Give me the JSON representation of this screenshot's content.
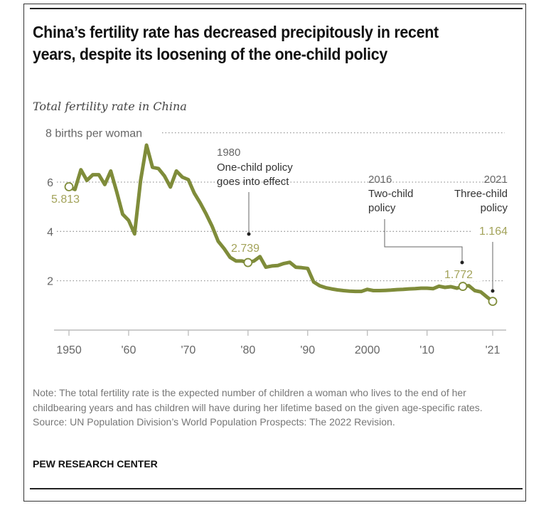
{
  "title": "China’s fertility rate has decreased precipitously in recent years, despite its loosening of the one-child policy",
  "subtitle": "Total fertility rate in China",
  "note": "Note: The total fertility rate is the expected number of children a woman who lives to the end of her childbearing years and has children will have during her lifetime based on the given age-specific rates.",
  "source": "Source: UN Population Division’s World Population Prospects: The 2022 Revision.",
  "brand": "PEW RESEARCH CENTER",
  "chart_data": {
    "type": "line",
    "title": "Total fertility rate in China",
    "ylabel": "8 births per woman",
    "ylim": [
      0,
      8
    ],
    "xlim": [
      1950,
      2021
    ],
    "grid": "horizontal dotted",
    "line_color": "#7f8c3a",
    "y_ticks": [
      {
        "value": 2,
        "label": "2"
      },
      {
        "value": 4,
        "label": "4"
      },
      {
        "value": 6,
        "label": "6"
      },
      {
        "value": 8,
        "label": "8 births per woman"
      }
    ],
    "x_ticks": [
      {
        "value": 1950,
        "label": "1950"
      },
      {
        "value": 1960,
        "label": "'60"
      },
      {
        "value": 1970,
        "label": "'70"
      },
      {
        "value": 1980,
        "label": "'80"
      },
      {
        "value": 1990,
        "label": "'90"
      },
      {
        "value": 2000,
        "label": "2000"
      },
      {
        "value": 2010,
        "label": "'10"
      },
      {
        "value": 2021,
        "label": "'21"
      }
    ],
    "x": [
      1950,
      1951,
      1952,
      1953,
      1954,
      1955,
      1956,
      1957,
      1958,
      1959,
      1960,
      1961,
      1962,
      1963,
      1964,
      1965,
      1966,
      1967,
      1968,
      1969,
      1970,
      1971,
      1972,
      1973,
      1974,
      1975,
      1976,
      1977,
      1978,
      1979,
      1980,
      1981,
      1982,
      1983,
      1984,
      1985,
      1986,
      1987,
      1988,
      1989,
      1990,
      1991,
      1992,
      1993,
      1994,
      1995,
      1996,
      1997,
      1998,
      1999,
      2000,
      2001,
      2002,
      2003,
      2004,
      2005,
      2006,
      2007,
      2008,
      2009,
      2010,
      2011,
      2012,
      2013,
      2014,
      2015,
      2016,
      2017,
      2018,
      2019,
      2020,
      2021
    ],
    "values": [
      5.813,
      5.7,
      6.5,
      6.07,
      6.3,
      6.3,
      5.9,
      6.45,
      5.6,
      4.7,
      4.45,
      3.9,
      6.05,
      7.5,
      6.6,
      6.55,
      6.25,
      5.8,
      6.45,
      6.2,
      6.1,
      5.55,
      5.15,
      4.7,
      4.2,
      3.6,
      3.3,
      2.95,
      2.8,
      2.8,
      2.739,
      2.8,
      2.98,
      2.55,
      2.6,
      2.62,
      2.7,
      2.75,
      2.55,
      2.53,
      2.5,
      1.95,
      1.8,
      1.72,
      1.67,
      1.63,
      1.6,
      1.58,
      1.57,
      1.57,
      1.65,
      1.6,
      1.6,
      1.61,
      1.62,
      1.64,
      1.65,
      1.67,
      1.68,
      1.7,
      1.7,
      1.68,
      1.78,
      1.73,
      1.76,
      1.7,
      1.772,
      1.8,
      1.6,
      1.55,
      1.35,
      1.164
    ],
    "annotations": [
      {
        "x": 1950,
        "value": 5.813,
        "label": "5.813"
      },
      {
        "x": 1980,
        "value": 2.739,
        "label": "2.739",
        "year": "1980",
        "text_lines": [
          "One-child policy",
          "goes into effect"
        ]
      },
      {
        "x": 2016,
        "value": 1.772,
        "label": "1.772",
        "year": "2016",
        "text_lines": [
          "Two-child",
          "policy"
        ]
      },
      {
        "x": 2021,
        "value": 1.164,
        "label": "1.164",
        "year": "2021",
        "text_lines": [
          "Three-child",
          "policy"
        ]
      }
    ]
  }
}
